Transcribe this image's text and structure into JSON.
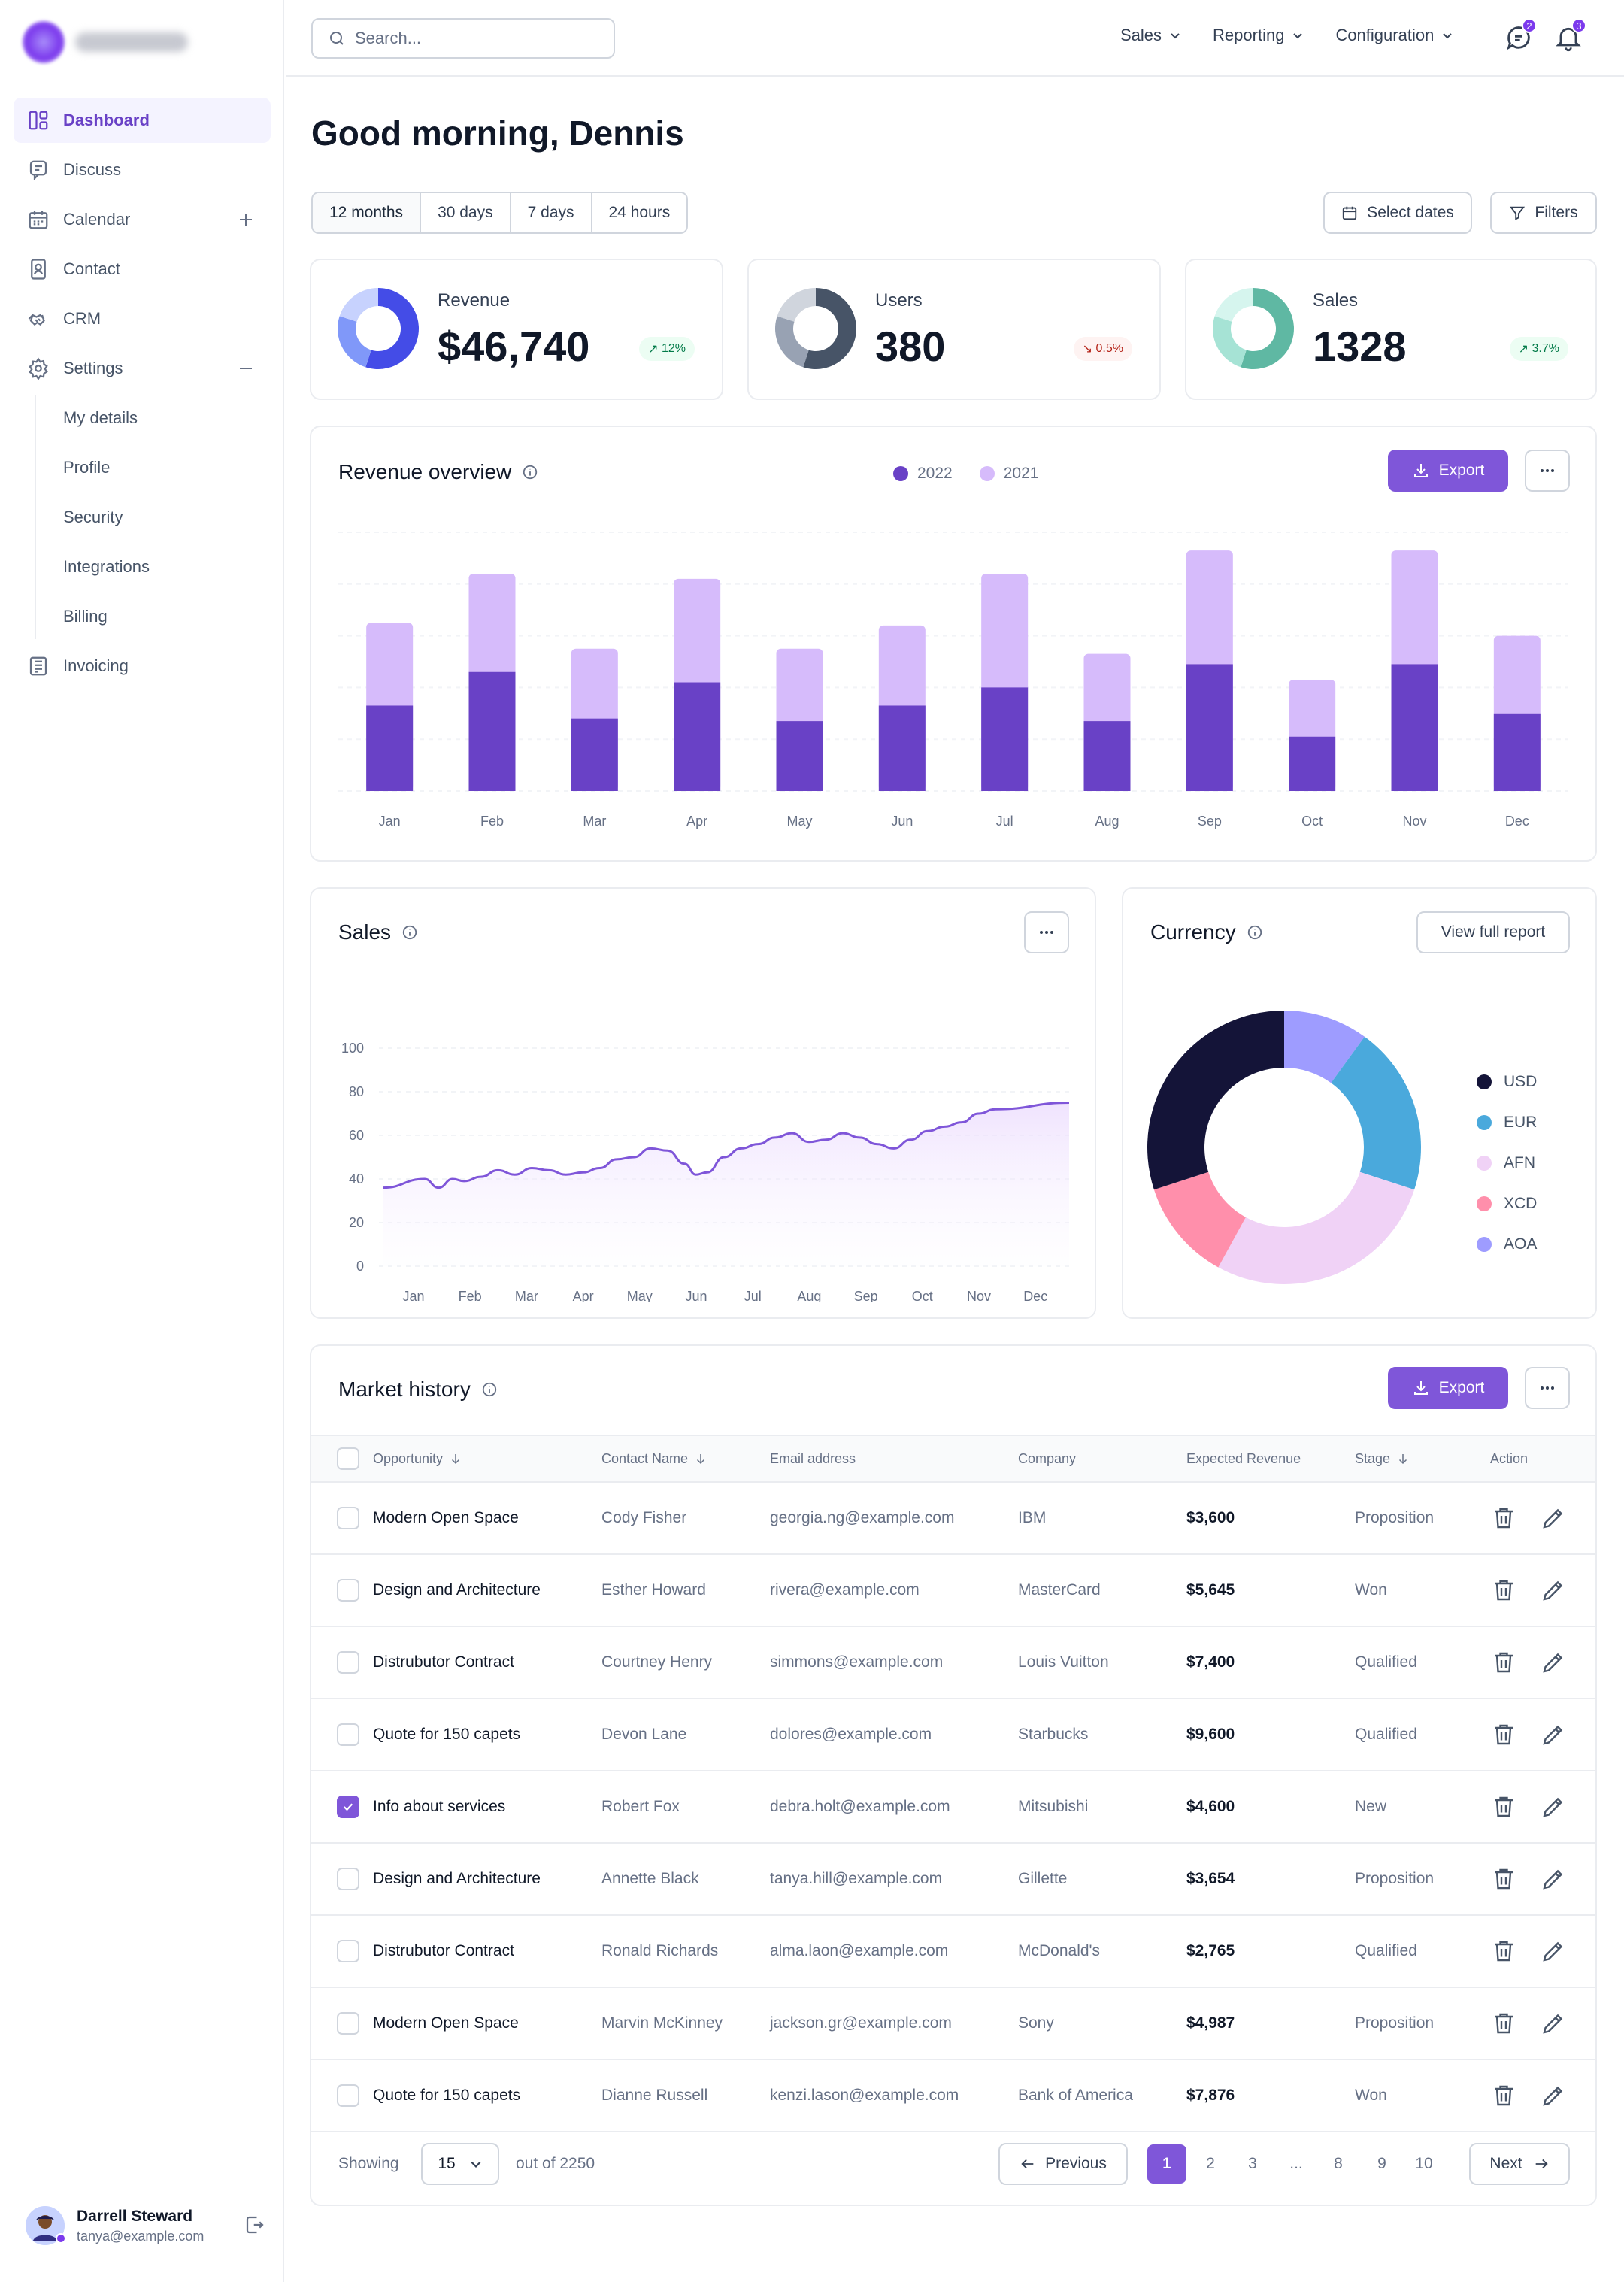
{
  "sidebar": {
    "items": [
      {
        "label": "Dashboard",
        "icon": "dashboard-icon"
      },
      {
        "label": "Discuss",
        "icon": "chat-icon"
      },
      {
        "label": "Calendar",
        "icon": "calendar-icon"
      },
      {
        "label": "Contact",
        "icon": "contact-icon"
      },
      {
        "label": "CRM",
        "icon": "crm-icon"
      },
      {
        "label": "Settings",
        "icon": "gear-icon"
      },
      {
        "label": "Invoicing",
        "icon": "invoice-icon"
      }
    ],
    "settings_sub": [
      "My details",
      "Profile",
      "Security",
      "Integrations",
      "Billing"
    ],
    "user": {
      "name": "Darrell Steward",
      "email": "tanya@example.com"
    }
  },
  "topbar": {
    "search_placeholder": "Search...",
    "menus": [
      "Sales",
      "Reporting",
      "Configuration"
    ],
    "chat_badge": "2",
    "bell_badge": "3"
  },
  "page": {
    "greeting": "Good morning, Dennis",
    "ranges": [
      "12 months",
      "30 days",
      "7 days",
      "24 hours"
    ],
    "select_dates": "Select dates",
    "filters": "Filters"
  },
  "stats": [
    {
      "title": "Revenue",
      "value": "$46,740",
      "change": "12%",
      "direction": "up",
      "colors": [
        "#444ce7",
        "#8098f9",
        "#c7d2fe"
      ]
    },
    {
      "title": "Users",
      "value": "380",
      "change": "0.5%",
      "direction": "down",
      "colors": [
        "#475467",
        "#98a2b3",
        "#d0d5dd"
      ]
    },
    {
      "title": "Sales",
      "value": "1328",
      "change": "3.7%",
      "direction": "up",
      "colors": [
        "#5fb8a3",
        "#a6e3d5",
        "#d6f5ee"
      ]
    }
  ],
  "revenue_overview": {
    "title": "Revenue overview",
    "export": "Export",
    "chart_data": {
      "type": "bar",
      "categories": [
        "Jan",
        "Feb",
        "Mar",
        "Apr",
        "May",
        "Jun",
        "Jul",
        "Aug",
        "Sep",
        "Oct",
        "Nov",
        "Dec"
      ],
      "series": [
        {
          "name": "2022",
          "color": "#6941c6",
          "values": [
            33,
            46,
            28,
            42,
            27,
            33,
            40,
            27,
            49,
            21,
            49,
            30
          ]
        },
        {
          "name": "2021",
          "color": "#d6bbfb",
          "values": [
            65,
            84,
            55,
            82,
            55,
            64,
            84,
            53,
            93,
            43,
            93,
            60
          ]
        }
      ],
      "grid": true,
      "stacked_overlay": true
    }
  },
  "sales": {
    "title": "Sales",
    "chart_data": {
      "type": "line",
      "x": [
        "Jan",
        "Feb",
        "Mar",
        "Apr",
        "May",
        "Jun",
        "Jul",
        "Aug",
        "Sep",
        "Oct",
        "Nov",
        "Dec"
      ],
      "y_ticks": [
        "100",
        "80",
        "60",
        "40",
        "20",
        "0"
      ],
      "ylim": [
        0,
        100
      ],
      "color": "#7f56d9",
      "points": [
        [
          0,
          36
        ],
        [
          0.3,
          40
        ],
        [
          0.55,
          36
        ],
        [
          0.8,
          40
        ],
        [
          1.0,
          39
        ],
        [
          1.3,
          41
        ],
        [
          1.6,
          44
        ],
        [
          1.9,
          42
        ],
        [
          2.2,
          45
        ],
        [
          2.5,
          44
        ],
        [
          2.8,
          42
        ],
        [
          3.1,
          43
        ],
        [
          3.4,
          45
        ],
        [
          3.7,
          49
        ],
        [
          4.0,
          50
        ],
        [
          4.3,
          54
        ],
        [
          4.6,
          53
        ],
        [
          4.9,
          47
        ],
        [
          5.1,
          42
        ],
        [
          5.3,
          43
        ],
        [
          5.6,
          50
        ],
        [
          5.9,
          54
        ],
        [
          6.2,
          56
        ],
        [
          6.5,
          59
        ],
        [
          6.8,
          61
        ],
        [
          7.1,
          57
        ],
        [
          7.4,
          58
        ],
        [
          7.7,
          61
        ],
        [
          8.0,
          59
        ],
        [
          8.3,
          56
        ],
        [
          8.6,
          54
        ],
        [
          8.9,
          58
        ],
        [
          9.2,
          62
        ],
        [
          9.5,
          64
        ],
        [
          9.8,
          66
        ],
        [
          10.1,
          70
        ],
        [
          10.4,
          72
        ],
        [
          10.6,
          75
        ]
      ]
    }
  },
  "currency": {
    "title": "Currency",
    "view_report": "View full report",
    "chart_data": {
      "type": "pie",
      "donut": true,
      "slices": [
        {
          "label": "AOA",
          "value": 10,
          "color": "#9e9cff"
        },
        {
          "label": "EUR",
          "value": 20,
          "color": "#4aa9dc"
        },
        {
          "label": "AFN",
          "value": 28,
          "color": "#f0d2f6"
        },
        {
          "label": "XCD",
          "value": 12,
          "color": "#ff8fab"
        },
        {
          "label": "USD",
          "value": 30,
          "color": "#141438"
        }
      ],
      "legend_order": [
        "USD",
        "EUR",
        "AFN",
        "XCD",
        "AOA"
      ]
    }
  },
  "market_history": {
    "title": "Market history",
    "export": "Export",
    "columns": [
      "Opportunity",
      "Contact Name",
      "Email address",
      "Company",
      "Expected Revenue",
      "Stage",
      "Action"
    ],
    "rows": [
      {
        "opportunity": "Modern Open Space",
        "contact": "Cody Fisher",
        "email": "georgia.ng@example.com",
        "company": "IBM",
        "revenue": "$3,600",
        "stage": "Proposition",
        "checked": false
      },
      {
        "opportunity": "Design and Architecture",
        "contact": "Esther Howard",
        "email": "rivera@example.com",
        "company": "MasterCard",
        "revenue": "$5,645",
        "stage": "Won",
        "checked": false
      },
      {
        "opportunity": "Distrubutor Contract",
        "contact": "Courtney Henry",
        "email": "simmons@example.com",
        "company": "Louis Vuitton",
        "revenue": "$7,400",
        "stage": "Qualified",
        "checked": false
      },
      {
        "opportunity": "Quote for 150 capets",
        "contact": "Devon Lane",
        "email": "dolores@example.com",
        "company": "Starbucks",
        "revenue": "$9,600",
        "stage": "Qualified",
        "checked": false
      },
      {
        "opportunity": "Info about services",
        "contact": "Robert Fox",
        "email": "debra.holt@example.com",
        "company": "Mitsubishi",
        "revenue": "$4,600",
        "stage": "New",
        "checked": true
      },
      {
        "opportunity": "Design and Architecture",
        "contact": "Annette Black",
        "email": "tanya.hill@example.com",
        "company": "Gillette",
        "revenue": "$3,654",
        "stage": "Proposition",
        "checked": false
      },
      {
        "opportunity": "Distrubutor Contract",
        "contact": "Ronald Richards",
        "email": "alma.laon@example.com",
        "company": "McDonald's",
        "revenue": "$2,765",
        "stage": "Qualified",
        "checked": false
      },
      {
        "opportunity": "Modern Open Space",
        "contact": "Marvin McKinney",
        "email": "jackson.gr@example.com",
        "company": "Sony",
        "revenue": "$4,987",
        "stage": "Proposition",
        "checked": false
      },
      {
        "opportunity": "Quote for 150 capets",
        "contact": "Dianne Russell",
        "email": "kenzi.lason@example.com",
        "company": "Bank of America",
        "revenue": "$7,876",
        "stage": "Won",
        "checked": false
      }
    ],
    "pagination": {
      "showing": "Showing",
      "page_size": "15",
      "out_of": "out of 2250",
      "previous": "Previous",
      "next": "Next",
      "pages": [
        "1",
        "2",
        "3",
        "...",
        "8",
        "9",
        "10"
      ],
      "current": "1"
    }
  }
}
